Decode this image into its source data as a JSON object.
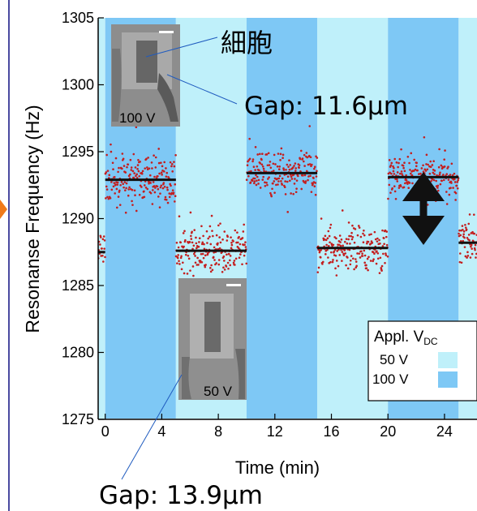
{
  "chart_data": {
    "type": "line",
    "xlabel": "Time (min)",
    "ylabel": "Resonanse Frequency (Hz)",
    "xlim": [
      -0.5,
      26.3
    ],
    "ylim": [
      1275,
      1305
    ],
    "x_ticks": [
      "0",
      "4",
      "8",
      "12",
      "16",
      "20",
      "24"
    ],
    "y_ticks": [
      "1275",
      "1280",
      "1285",
      "1290",
      "1295",
      "1300",
      "1305"
    ],
    "grid": false,
    "bands": [
      {
        "x0": -0.5,
        "x1": 0,
        "voltage": "50 V"
      },
      {
        "x0": 0,
        "x1": 5,
        "voltage": "100 V"
      },
      {
        "x0": 5,
        "x1": 10,
        "voltage": "50 V"
      },
      {
        "x0": 10,
        "x1": 15,
        "voltage": "100 V"
      },
      {
        "x0": 15,
        "x1": 20,
        "voltage": "50 V"
      },
      {
        "x0": 20,
        "x1": 25,
        "voltage": "100 V"
      },
      {
        "x0": 25,
        "x1": 26.3,
        "voltage": "50 V"
      }
    ],
    "mean_levels": [
      {
        "x0": -0.5,
        "x1": 0,
        "y": 1287.5
      },
      {
        "x0": 0,
        "x1": 5,
        "y": 1292.9
      },
      {
        "x0": 5,
        "x1": 10,
        "y": 1287.6
      },
      {
        "x0": 10,
        "x1": 15,
        "y": 1293.4
      },
      {
        "x0": 15,
        "x1": 20,
        "y": 1287.8
      },
      {
        "x0": 20,
        "x1": 25,
        "y": 1293.1
      },
      {
        "x0": 25,
        "x1": 26.3,
        "y": 1288.2
      }
    ],
    "series_color": "#c41e1e"
  },
  "legend": {
    "title": "Appl. V",
    "title_sub": "DC",
    "items": [
      {
        "label": "50 V",
        "color": "#bff0fa"
      },
      {
        "label": "100 V",
        "color": "#7ec8f5"
      }
    ]
  },
  "annotations": {
    "cell_label": "細胞",
    "gap_top": "Gap: 11.6μm",
    "gap_bottom": "Gap: 13.9μm",
    "inset_top_label": "100 V",
    "inset_bottom_label": "50 V"
  },
  "colors": {
    "band_50v": "#bff0fa",
    "band_100v": "#7ec8f5",
    "mean_line": "#111111",
    "arrow": "#111111"
  }
}
